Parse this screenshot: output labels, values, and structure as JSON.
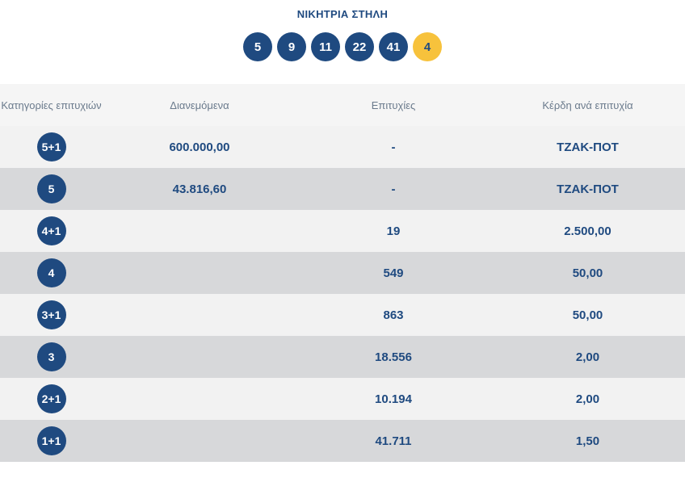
{
  "heading": "ΝΙΚΗΤΡΙΑ ΣΤΗΛΗ",
  "winning_numbers": [
    "5",
    "9",
    "11",
    "22",
    "41"
  ],
  "joker_number": "4",
  "colors": {
    "primary": "#1f4a80",
    "joker": "#f7c23c",
    "row_light": "#f2f2f2",
    "row_dark": "#d7d8da"
  },
  "table": {
    "headers": {
      "category": "Κατηγορίες επιτυχιών",
      "distributed": "Διανεμόμενα",
      "winners": "Επιτυχίες",
      "prize": "Κέρδη ανά επιτυχία"
    },
    "rows": [
      {
        "category": "5+1",
        "distributed": "600.000,00",
        "winners": "-",
        "prize": "ΤΖΑΚ-ΠΟΤ"
      },
      {
        "category": "5",
        "distributed": "43.816,60",
        "winners": "-",
        "prize": "ΤΖΑΚ-ΠΟΤ"
      },
      {
        "category": "4+1",
        "distributed": "",
        "winners": "19",
        "prize": "2.500,00"
      },
      {
        "category": "4",
        "distributed": "",
        "winners": "549",
        "prize": "50,00"
      },
      {
        "category": "3+1",
        "distributed": "",
        "winners": "863",
        "prize": "50,00"
      },
      {
        "category": "3",
        "distributed": "",
        "winners": "18.556",
        "prize": "2,00"
      },
      {
        "category": "2+1",
        "distributed": "",
        "winners": "10.194",
        "prize": "2,00"
      },
      {
        "category": "1+1",
        "distributed": "",
        "winners": "41.711",
        "prize": "1,50"
      }
    ]
  }
}
